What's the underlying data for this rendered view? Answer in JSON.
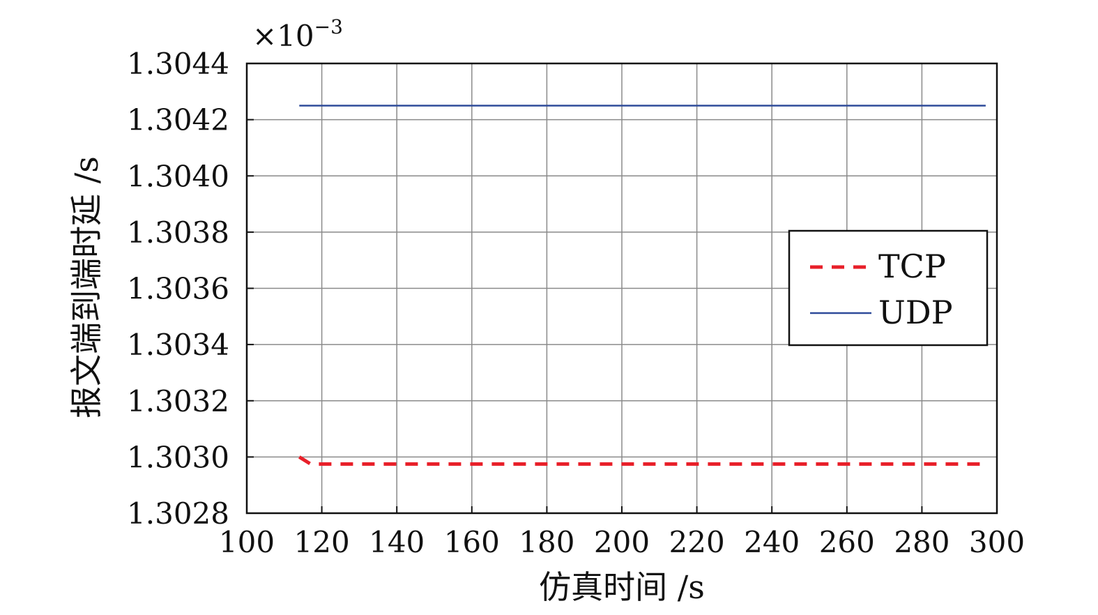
{
  "chart_data": {
    "type": "line",
    "xlabel": "仿真时间 /s",
    "ylabel": "报文端到端时延 /s",
    "exponent_base": "×10",
    "exponent_power": "−3",
    "xlim": [
      100,
      300
    ],
    "ylim": [
      1.3028,
      1.3044
    ],
    "x_ticks": [
      100,
      120,
      140,
      160,
      180,
      200,
      220,
      240,
      260,
      280,
      300
    ],
    "y_ticks": [
      1.3028,
      1.303,
      1.3032,
      1.3034,
      1.3036,
      1.3038,
      1.304,
      1.3042,
      1.3044
    ],
    "y_tick_labels": [
      "1.3028",
      "1.3030",
      "1.3032",
      "1.3034",
      "1.3036",
      "1.3038",
      "1.3040",
      "1.3042",
      "1.3044"
    ],
    "x_tick_labels": [
      "100",
      "120",
      "140",
      "160",
      "180",
      "200",
      "220",
      "240",
      "260",
      "280",
      "300"
    ],
    "grid": true,
    "legend_position": "right",
    "series": [
      {
        "name": "TCP",
        "color": "#e8202a",
        "style": "dashed",
        "x": [
          114,
          117,
          297
        ],
        "y": [
          1.303,
          1.302975,
          1.302975
        ]
      },
      {
        "name": "UDP",
        "color": "#2f4b9a",
        "style": "solid",
        "x": [
          114,
          297
        ],
        "y": [
          1.30425,
          1.30425
        ]
      }
    ]
  }
}
